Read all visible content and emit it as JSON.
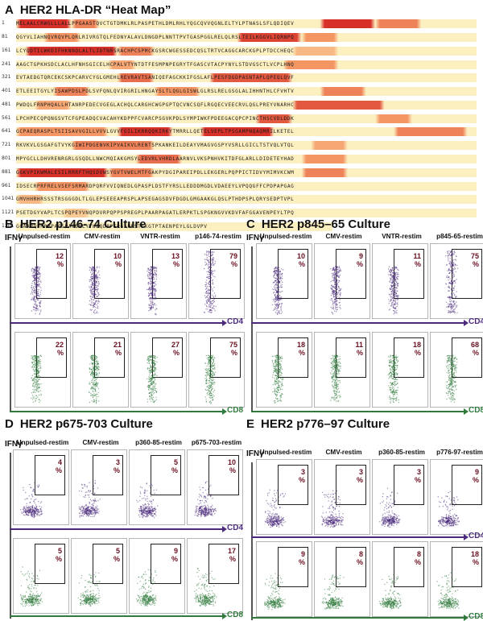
{
  "panel_a": {
    "letter": "A",
    "title": "HER2 HLA-DR “Heat Map”",
    "rows": [
      {
        "start": "1",
        "seq": "MELAALCRWGLLLALLPPGAASTQVCTGTDMKLRLPASPETHLDMLRHLYQGCQVVQGNLELTYLPTNASLSFLQDIQEV"
      },
      {
        "start": "81",
        "seq": "QGYVLIAHNQVRQVPLQRLRIVRGTQLFEDNYALAVLDNGDPLNNTTPVTGASPGGLRELQLRSLTEILKGGVLIQRNPQ"
      },
      {
        "start": "161",
        "seq": "LCYQDTILWKDIFHKNNQLALTLIDTNRSRACHPCSPMCKGSRCWGESSEDCQSLTRTVCAGGCARCKGPLPTDCCHEQC"
      },
      {
        "start": "241",
        "seq": "AAGCTGPKHSDCLACLHFNHSGICELHCPALVTYNTDTFESMPNPEGRYTFGASCVTACPYNYLSTDVGSCTLVCPLHNQ"
      },
      {
        "start": "321",
        "seq": "EVTAEDGTQRCEKCSKPCARVCYGLGMEHLREVRAVTSANIQEFAGCKKIFGSLAFLPESFDGDPASNTAPLQPEQLQVF"
      },
      {
        "start": "401",
        "seq": "ETLEEITGYLYISAWPDSLPDLSVFQNLQVIRGRILHNGAYSLTLQGLGISWLGLRSLRELGSGLALIHHNTHLCFVHTV"
      },
      {
        "start": "481",
        "seq": "PWDQLFRNPHQALLHTANRPEDECVGEGLACHQLCARGHCWGPGPTQCVNCSQFLRGQECVEECRVLQGLPREYVNARHC"
      },
      {
        "start": "561",
        "seq": "LPCHPECQPQNGSVTCFGPEADQCVACAHYKDPPFCVARCPSGVKPDLSYMPIWKFPDEEGACQPCPINCTHSCVDLDDK"
      },
      {
        "start": "641",
        "seq": "GCPAEQRASPLTSIISAVVGILLVVVLGVVFGILIKRRQQKIRKYTMRRLLQETELVEPLTPSGAMPNQAQMRILKETEL"
      },
      {
        "start": "721",
        "seq": "RKVKVLGSGAFGTVYKGIWIPDGENVKIPVAIKVLRENTSPKANKEILDEAYVMAGVGSPYVSRLLGICLTSTVQLVTQL"
      },
      {
        "start": "801",
        "seq": "MPYGCLLDHVRENRGRLGSQDLLNWCMQIAKGMSYLEDVRLVHRDLAARNVLVKSPNHVKITDFGLARLLDIDETEYHAD"
      },
      {
        "start": "881",
        "seq": "GGKVPIKWMALESILRRRFTHQSDVWSYGVTVWELMTFGAKPYDGIPAREIPDLLEKGERLPQPPICTIDVYMIMVKCWM"
      },
      {
        "start": "961",
        "seq": "IDSECRPRFRELVSEFSRMARDPQRFVVIQNEDLGPASPLDSTFYRSLLEDDDMGDLVDAEEYLVPQQGFFCPDPAPGAG"
      },
      {
        "start": "1041",
        "seq": "GMVHHRHRSSSTRSGGGDLTLGLEPSEEEAPRSPLAPSEGAGSDVFDGDLGMGAAKGLQSLPTHDPSPLQRYSEDPTVPL"
      },
      {
        "start": "1121",
        "seq": "PSETDGYVAPLTCSPQPEYVNQPDVRPQPPSPREGPLPAARPAGATLERPKTLSPGKNGVVKDVFAFGGAVENPEYLTPQ"
      },
      {
        "start": "1201",
        "seq": "GGAAPQPHPPPAFSPAFDNLYYWDQDPPERGAPPSTFKGTPTAENPEYLGLDVPV"
      }
    ]
  },
  "panels": [
    {
      "letter": "B",
      "title": "HER2 p146-74 Culture",
      "ifn_label": "IFNγ",
      "cd4_label": "CD4",
      "cd8_label": "CD8",
      "columns": [
        "Unpulsed-restim",
        "CMV-restim",
        "VNTR-restim",
        "p146-74-restim"
      ],
      "cd4_pct": [
        "12",
        "10",
        "13",
        "79"
      ],
      "cd8_pct": [
        "22",
        "21",
        "27",
        "75"
      ],
      "pct_unit": "%"
    },
    {
      "letter": "C",
      "title": "HER2 p845–65 Culture",
      "ifn_label": "IFNγ",
      "cd4_label": "CD4",
      "cd8_label": "CD8",
      "columns": [
        "Unpulsed-restim",
        "CMV-restim",
        "VNTR-restim",
        "p845-65-restim"
      ],
      "cd4_pct": [
        "10",
        "9",
        "11",
        "75"
      ],
      "cd8_pct": [
        "18",
        "11",
        "18",
        "68"
      ],
      "pct_unit": "%"
    },
    {
      "letter": "D",
      "title": "HER2 p675-703 Culture",
      "ifn_label": "IFNγ",
      "cd4_label": "CD4",
      "cd8_label": "CD8",
      "columns": [
        "Unpulsed-restim",
        "CMV-restim",
        "p360-85-restim",
        "p675-703-restim"
      ],
      "cd4_pct": [
        "4",
        "3",
        "5",
        "10"
      ],
      "cd8_pct": [
        "5",
        "5",
        "9",
        "17"
      ],
      "pct_unit": "%"
    },
    {
      "letter": "E",
      "title": "HER2 p776–97 Culture",
      "ifn_label": "IFNγ",
      "cd4_label": "CD4",
      "cd8_label": "CD8",
      "columns": [
        "Unpulsed-restim",
        "CMV-restim",
        "p360-85-restim",
        "p776-97-restim"
      ],
      "cd4_pct": [
        "3",
        "3",
        "3",
        "9"
      ],
      "cd8_pct": [
        "9",
        "8",
        "8",
        "18"
      ],
      "pct_unit": "%"
    }
  ],
  "colors": {
    "heat_low": "#fdf2c4",
    "heat_mid": "#f4a06a",
    "heat_high": "#d8322a",
    "cd4_purple": "#4b2a7b",
    "cd8_green": "#2f7a3c",
    "pct_red": "#6b1020"
  }
}
